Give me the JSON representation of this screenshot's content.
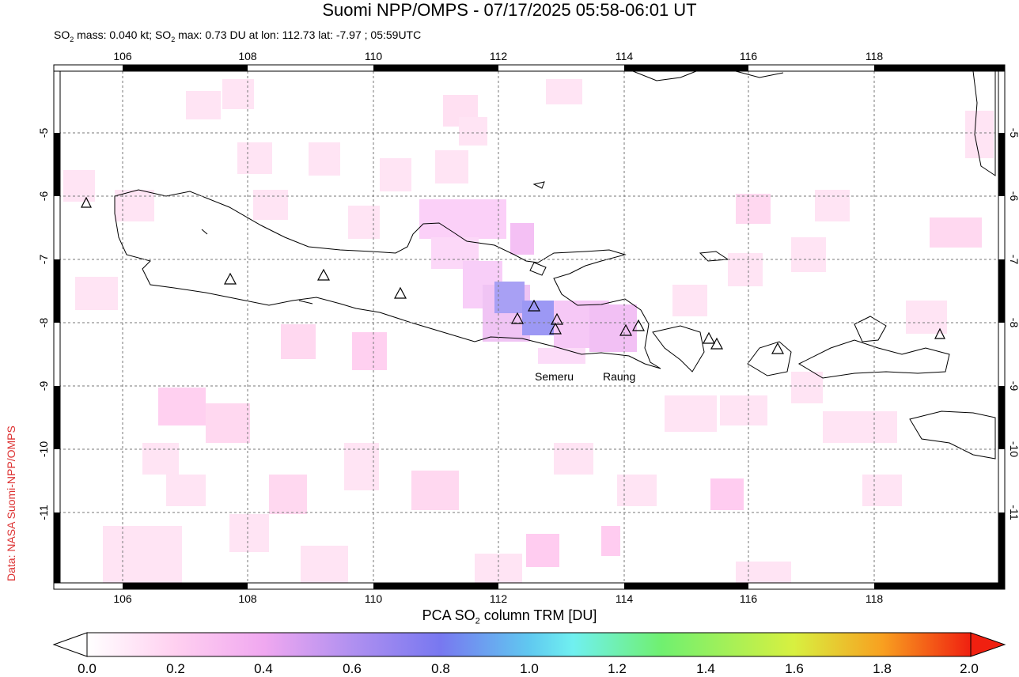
{
  "title": "Suomi NPP/OMPS - 07/17/2025 05:58-06:01 UT",
  "subtitle": {
    "mass_prefix": "SO",
    "mass_sub": "2",
    "mass_text": " mass: 0.040 kt; SO",
    "max_sub": "2",
    "max_text": " max: 0.73 DU at lon: 112.73 lat: -7.97 ; 05:59UTC"
  },
  "credit": "Data: NASA Suomi-NPP/OMPS",
  "map": {
    "lon_ticks": [
      "106",
      "108",
      "110",
      "112",
      "114",
      "116",
      "118"
    ],
    "lat_ticks": [
      "-5",
      "-6",
      "-7",
      "-8",
      "-9",
      "-10",
      "-11"
    ],
    "volcano_labels": [
      "Semeru",
      "Raung"
    ]
  },
  "colorbar": {
    "title_prefix": "PCA SO",
    "title_sub": "2",
    "title_suffix": " column TRM [DU]",
    "ticks": [
      "0.0",
      "0.2",
      "0.4",
      "0.6",
      "0.8",
      "1.0",
      "1.2",
      "1.4",
      "1.6",
      "1.8",
      "2.0"
    ],
    "colors": [
      "#ffffff",
      "#ffd0f0",
      "#f0a8f0",
      "#b090f0",
      "#7070f0",
      "#60c8f0",
      "#70f0f0",
      "#70f070",
      "#d8f040",
      "#f8a020",
      "#f02010"
    ]
  }
}
